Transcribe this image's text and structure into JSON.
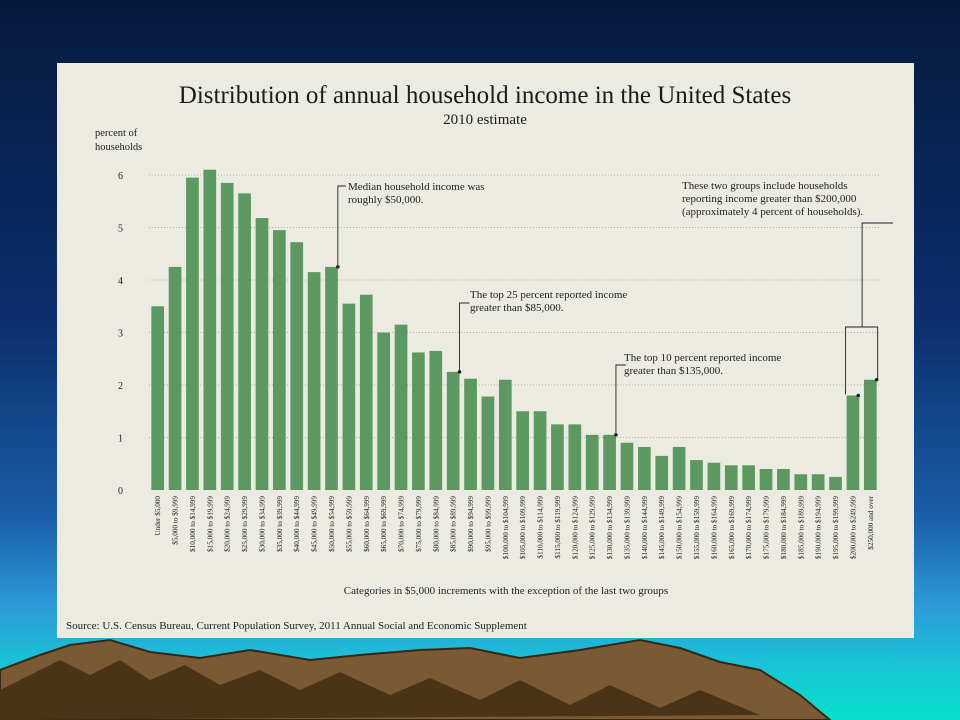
{
  "chart_data": {
    "type": "bar",
    "title": "Distribution of annual household income in the United States",
    "subtitle": "2010 estimate",
    "ylabel": "percent of households",
    "xlabel": "Categories in $5,000 increments with the exception of the last two groups",
    "source": "Source: U.S. Census Bureau, Current Population Survey, 2011 Annual Social and Economic Supplement",
    "ylim": [
      0,
      6
    ],
    "yticks": [
      0,
      1,
      2,
      3,
      4,
      5,
      6
    ],
    "grid": true,
    "bar_color": "#5b9960",
    "categories": [
      "Under $5,000",
      "$5,000 to $9,999",
      "$10,000 to $14,999",
      "$15,000 to $19,999",
      "$20,000 to $24,999",
      "$25,000 to $29,999",
      "$30,000 to $34,999",
      "$35,000 to $39,999",
      "$40,000 to $44,999",
      "$45,000 to $49,999",
      "$50,000 to $54,999",
      "$55,000 to $59,999",
      "$60,000 to $64,999",
      "$65,000 to $69,999",
      "$70,000 to $74,999",
      "$75,000 to $79,999",
      "$80,000 to $84,999",
      "$85,000 to $89,999",
      "$90,000 to $94,999",
      "$95,000 to $99,999",
      "$100,000 to $104,999",
      "$105,000 to $109,999",
      "$110,000 to $114,999",
      "$115,000 to $119,999",
      "$120,000 to $124,999",
      "$125,000 to $129,999",
      "$130,000 to $134,999",
      "$135,000 to $139,999",
      "$140,000 to $144,999",
      "$145,000 to $149,999",
      "$150,000 to $154,999",
      "$155,000 to $159,999",
      "$160,000 to $164,999",
      "$165,000 to $169,999",
      "$170,000 to $174,999",
      "$175,000 to $179,999",
      "$180,000 to $184,999",
      "$185,000 to $189,999",
      "$190,000 to $194,999",
      "$195,000 to $199,999",
      "$200,000 to $249,999",
      "$250,000 and over"
    ],
    "values": [
      3.5,
      4.25,
      5.95,
      6.1,
      5.85,
      5.65,
      5.18,
      4.95,
      4.72,
      4.15,
      4.25,
      3.55,
      3.72,
      3.0,
      3.15,
      2.62,
      2.65,
      2.25,
      2.12,
      1.78,
      2.1,
      1.5,
      1.5,
      1.25,
      1.25,
      1.05,
      1.05,
      0.9,
      0.82,
      0.65,
      0.82,
      0.57,
      0.52,
      0.47,
      0.47,
      0.4,
      0.4,
      0.3,
      0.3,
      0.25,
      1.8,
      2.1
    ],
    "annotations": [
      {
        "category_index": 10,
        "text": [
          "Median household income was",
          "roughly $50,000."
        ]
      },
      {
        "category_index": 17,
        "text": [
          "The top 25 percent reported income",
          "greater than $85,000."
        ]
      },
      {
        "category_index": 26,
        "text": [
          "The top 10 percent reported income",
          "greater than $135,000."
        ]
      },
      {
        "category_index": 40,
        "text": [
          "These two groups include households",
          "reporting income greater than $200,000",
          "(approximately 4 percent of households)."
        ]
      }
    ]
  }
}
